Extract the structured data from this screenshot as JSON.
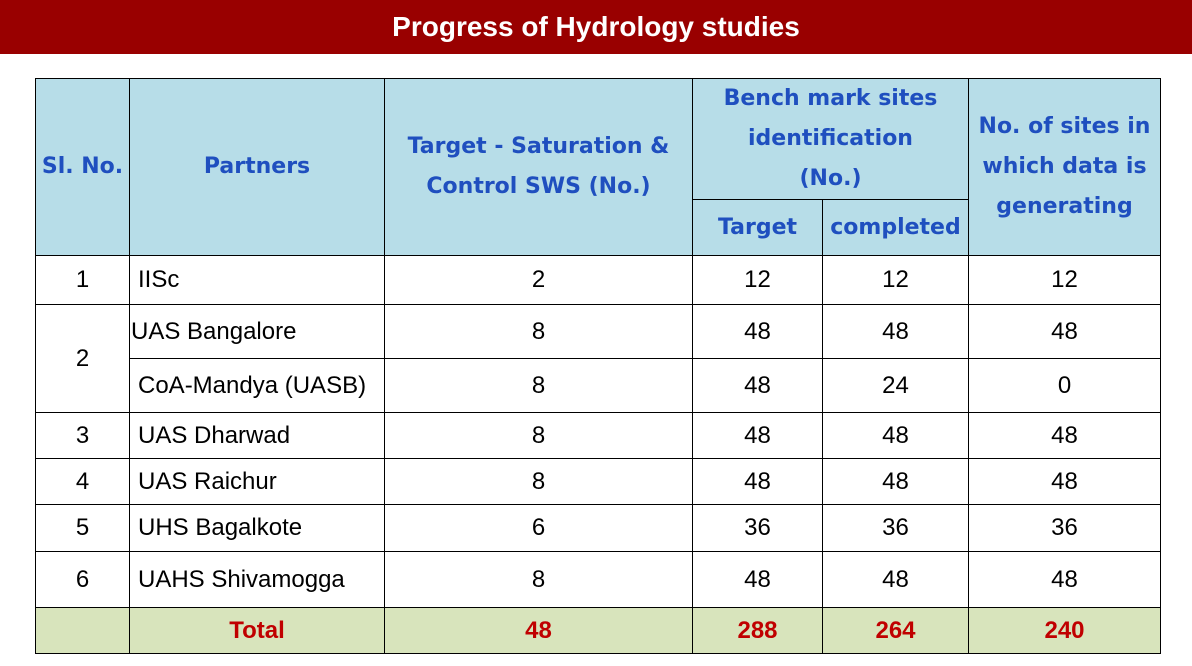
{
  "title": "Progress of Hydrology studies",
  "headers": {
    "sl_no": "Sl. No.",
    "partners": "Partners",
    "target_saturation": "Target - Saturation & Control SWS (No.)",
    "bench_mark": "Bench mark sites identification (No.)",
    "bench_target": "Target",
    "bench_completed": "completed",
    "sites_data": "No. of sites in which data is generating"
  },
  "rows": [
    {
      "sl": "1",
      "partner": "IISc",
      "target_sws": "2",
      "bm_target": "12",
      "bm_completed": "12",
      "sites": "12"
    },
    {
      "sl": "2",
      "partner": "UAS Bangalore",
      "target_sws": "8",
      "bm_target": "48",
      "bm_completed": "48",
      "sites": "48"
    },
    {
      "sl": "",
      "partner": "CoA-Mandya (UASB)",
      "target_sws": "8",
      "bm_target": "48",
      "bm_completed": "24",
      "sites": "0"
    },
    {
      "sl": "3",
      "partner": "UAS Dharwad",
      "target_sws": "8",
      "bm_target": "48",
      "bm_completed": "48",
      "sites": "48"
    },
    {
      "sl": "4",
      "partner": "UAS Raichur",
      "target_sws": "8",
      "bm_target": "48",
      "bm_completed": "48",
      "sites": "48"
    },
    {
      "sl": "5",
      "partner": "UHS Bagalkote",
      "target_sws": "6",
      "bm_target": "36",
      "bm_completed": "36",
      "sites": "36"
    },
    {
      "sl": "6",
      "partner": "UAHS Shivamogga",
      "target_sws": "8",
      "bm_target": "48",
      "bm_completed": "48",
      "sites": "48"
    }
  ],
  "total": {
    "label": "Total",
    "target_sws": "48",
    "bm_target": "288",
    "bm_completed": "264",
    "sites": "240"
  },
  "colors": {
    "title_bar": "#990000",
    "header_bg": "#b7dde8",
    "header_text": "#1f4fbf",
    "total_bg": "#d8e4bc",
    "total_text": "#c00000"
  }
}
